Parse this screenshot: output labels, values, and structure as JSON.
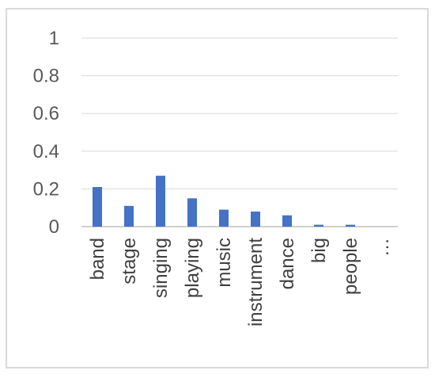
{
  "chart_data": {
    "type": "bar",
    "categories": [
      "band",
      "stage",
      "singing",
      "playing",
      "music",
      "instrument",
      "dance",
      "big",
      "people",
      "…"
    ],
    "values": [
      0.21,
      0.11,
      0.27,
      0.15,
      0.09,
      0.08,
      0.06,
      0.01,
      0.01,
      null
    ],
    "yticks": [
      "0",
      "0.2",
      "0.4",
      "0.6",
      "0.8",
      "1"
    ],
    "ylim": [
      0,
      1
    ],
    "grid": true,
    "legend": "none",
    "colors": {
      "bar": "#4472c4",
      "grid": "#d9d9d9",
      "axis": "#bfbfbf",
      "tick_text": "#595959",
      "frame": "#d9d9d9"
    }
  }
}
